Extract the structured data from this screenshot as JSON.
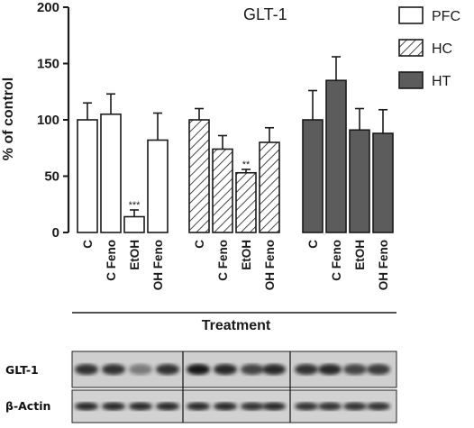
{
  "chart_data": {
    "type": "bar",
    "title": "GLT-1",
    "xlabel": "Treatment",
    "ylabel": "% of control",
    "ylim": [
      0,
      200
    ],
    "yticks": [
      0,
      50,
      100,
      150,
      200
    ],
    "grid": false,
    "legend_position": "top-right",
    "categories": [
      "C",
      "C Feno",
      "EtOH",
      "OH Feno"
    ],
    "series": [
      {
        "name": "PFC",
        "fill": "white",
        "values": [
          100,
          105,
          14,
          82
        ],
        "errors": [
          15,
          18,
          6,
          24
        ],
        "annotations": [
          "",
          "",
          "***",
          ""
        ]
      },
      {
        "name": "HC",
        "fill": "hatch",
        "values": [
          100,
          74,
          53,
          80
        ],
        "errors": [
          10,
          12,
          3,
          13
        ],
        "annotations": [
          "",
          "",
          "**",
          ""
        ]
      },
      {
        "name": "HT",
        "fill": "gray",
        "values": [
          100,
          135,
          91,
          88
        ],
        "errors": [
          26,
          21,
          19,
          21
        ],
        "annotations": [
          "",
          "",
          "",
          ""
        ]
      }
    ]
  },
  "blot": {
    "rows": [
      {
        "label": "GLT-1"
      },
      {
        "label": "β-Actin"
      }
    ]
  },
  "colors": {
    "bar_gray": "#5c5c5c",
    "ink": "#1a1a1a",
    "blot_bg": "#c9c9c9"
  }
}
